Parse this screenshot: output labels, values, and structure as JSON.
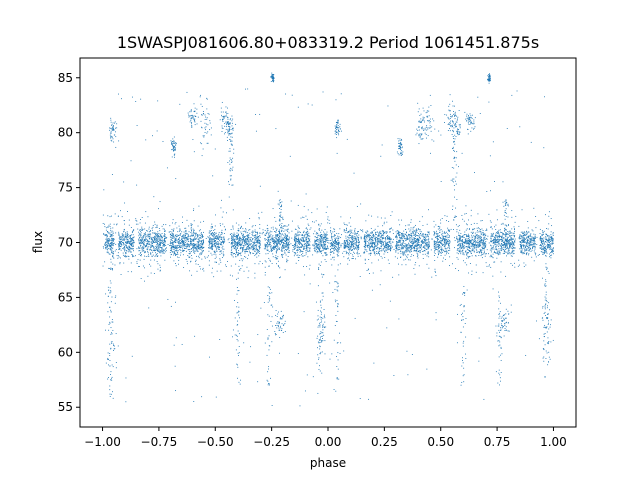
{
  "chart_data": {
    "type": "scatter",
    "title": "1SWASPJ081606.80+083319.2 Period 1061451.875s",
    "xlabel": "phase",
    "ylabel": "flux",
    "xlim": [
      -1.1,
      1.1
    ],
    "ylim": [
      53.2,
      86.8
    ],
    "grid": false,
    "legend": "none",
    "x_ticks": [
      -1.0,
      -0.75,
      -0.5,
      -0.25,
      0.0,
      0.25,
      0.5,
      0.75,
      1.0
    ],
    "x_tick_labels": [
      "−1.00",
      "−0.75",
      "−0.50",
      "−0.25",
      "0.00",
      "0.25",
      "0.50",
      "0.75",
      "1.00"
    ],
    "y_ticks": [
      55,
      60,
      65,
      70,
      75,
      80,
      85
    ],
    "y_tick_labels": [
      "55",
      "60",
      "65",
      "70",
      "75",
      "80",
      "85"
    ],
    "series": [
      {
        "color": "#1f77b4",
        "baseline_flux": 70.0,
        "baseline_scatter": 0.8,
        "phase_range": [
          -1.0,
          1.0
        ],
        "dense_segments": [
          [
            -0.99,
            -0.95
          ],
          [
            -0.93,
            -0.86
          ],
          [
            -0.84,
            -0.72
          ],
          [
            -0.7,
            -0.55
          ],
          [
            -0.53,
            -0.46
          ],
          [
            -0.43,
            -0.3
          ],
          [
            -0.28,
            -0.17
          ],
          [
            -0.15,
            -0.08
          ],
          [
            -0.06,
            0.0
          ],
          [
            0.01,
            0.05
          ],
          [
            0.07,
            0.14
          ],
          [
            0.16,
            0.28
          ],
          [
            0.3,
            0.45
          ],
          [
            0.47,
            0.54
          ],
          [
            0.57,
            0.7
          ],
          [
            0.72,
            0.83
          ],
          [
            0.85,
            0.92
          ],
          [
            0.94,
            1.0
          ]
        ],
        "clusters": [
          {
            "x": -0.955,
            "y": 80.2,
            "dx": 0.01,
            "dy": 0.6
          },
          {
            "x": -0.6,
            "y": 81.5,
            "dx": 0.01,
            "dy": 0.5
          },
          {
            "x": -0.545,
            "y": 81.0,
            "dx": 0.012,
            "dy": 1.2
          },
          {
            "x": -0.455,
            "y": 81.2,
            "dx": 0.012,
            "dy": 0.9
          },
          {
            "x": -0.435,
            "y": 80.6,
            "dx": 0.01,
            "dy": 0.6
          },
          {
            "x": -0.685,
            "y": 78.7,
            "dx": 0.006,
            "dy": 0.4
          },
          {
            "x": 0.045,
            "y": 80.5,
            "dx": 0.006,
            "dy": 0.4
          },
          {
            "x": 0.445,
            "y": 81.2,
            "dx": 0.012,
            "dy": 1.3
          },
          {
            "x": 0.545,
            "y": 81.0,
            "dx": 0.012,
            "dy": 0.9
          },
          {
            "x": 0.57,
            "y": 80.5,
            "dx": 0.01,
            "dy": 0.6
          },
          {
            "x": 0.63,
            "y": 81.0,
            "dx": 0.01,
            "dy": 0.4
          },
          {
            "x": 0.41,
            "y": 80.8,
            "dx": 0.008,
            "dy": 0.8
          },
          {
            "x": 0.32,
            "y": 78.7,
            "dx": 0.006,
            "dy": 0.4
          },
          {
            "x": -0.215,
            "y": 62.7,
            "dx": 0.012,
            "dy": 0.6
          },
          {
            "x": 0.785,
            "y": 62.7,
            "dx": 0.012,
            "dy": 0.6
          },
          {
            "x": -0.03,
            "y": 62.5,
            "dx": 0.012,
            "dy": 1.3
          },
          {
            "x": 0.97,
            "y": 62.5,
            "dx": 0.012,
            "dy": 1.3
          },
          {
            "x": -0.96,
            "y": 61.5,
            "dx": 0.01,
            "dy": 2.5
          },
          {
            "x": -0.245,
            "y": 85.0,
            "dx": 0.004,
            "dy": 0.2
          },
          {
            "x": 0.715,
            "y": 85.0,
            "dx": 0.004,
            "dy": 0.2
          }
        ],
        "vertical_streaks": [
          {
            "x": -0.965,
            "y0": 55.5,
            "y1": 69.0
          },
          {
            "x": -0.43,
            "y0": 75.0,
            "y1": 80.0
          },
          {
            "x": -0.4,
            "y0": 57.0,
            "y1": 68.0
          },
          {
            "x": -0.26,
            "y0": 57.0,
            "y1": 66.0
          },
          {
            "x": -0.035,
            "y0": 57.5,
            "y1": 68.0
          },
          {
            "x": 0.04,
            "y0": 56.0,
            "y1": 68.0
          },
          {
            "x": 0.56,
            "y0": 72.0,
            "y1": 80.0
          },
          {
            "x": 0.6,
            "y0": 57.0,
            "y1": 66.0
          },
          {
            "x": 0.76,
            "y0": 57.0,
            "y1": 66.0
          },
          {
            "x": 0.965,
            "y0": 57.5,
            "y1": 68.0
          },
          {
            "x": -0.21,
            "y0": 70.5,
            "y1": 74.0
          },
          {
            "x": 0.79,
            "y0": 70.5,
            "y1": 74.0
          }
        ],
        "scatter_outliers": 220,
        "dense_points": 5200
      }
    ]
  }
}
